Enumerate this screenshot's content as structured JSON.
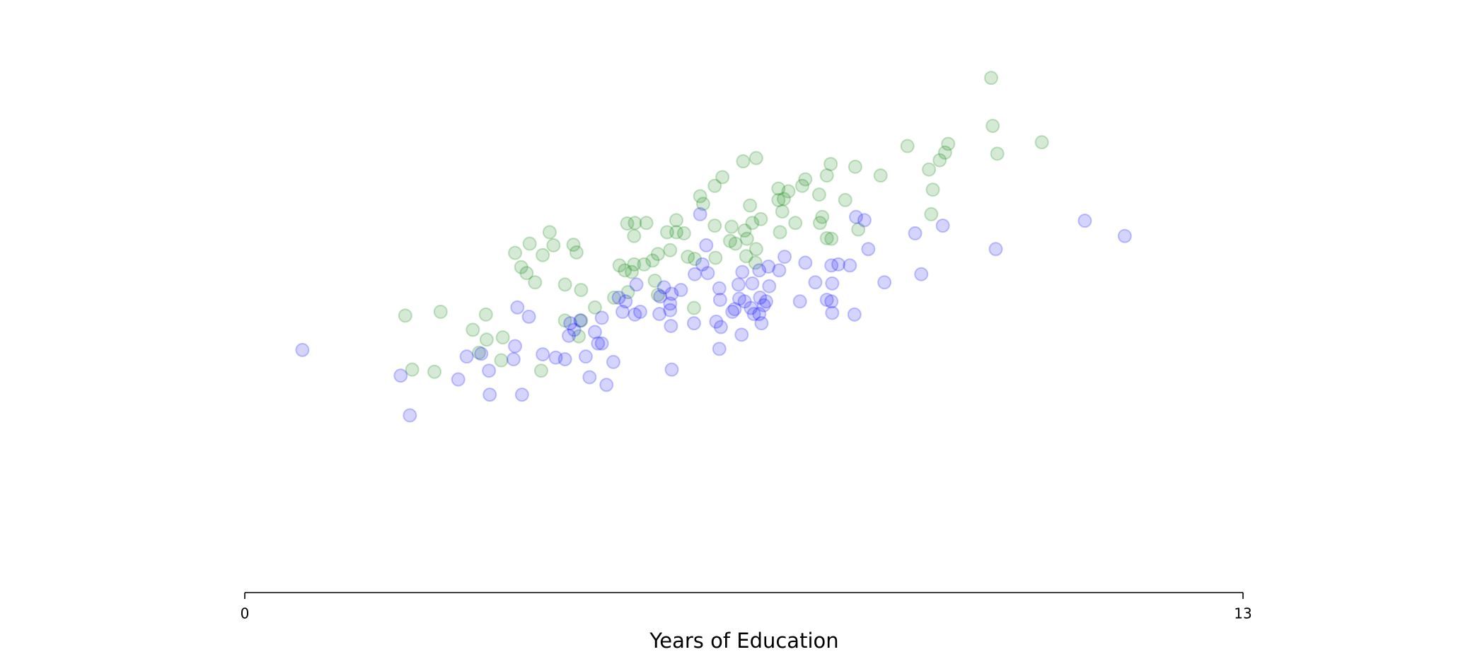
{
  "chart_data": {
    "type": "scatter",
    "x_label": "Years of Education",
    "xlim": [
      0,
      13
    ],
    "xticks": [
      0,
      13
    ],
    "ylim": [
      0,
      10
    ],
    "alpha": 0.17,
    "series": [
      {
        "color": "#008000",
        "x": [
          9.72,
          9.74,
          9.8,
          10.38,
          9.16,
          9.12,
          9.05,
          8.91,
          8.96,
          8.94,
          8.63,
          8.28,
          7.95,
          7.63,
          7.58,
          7.82,
          7.48,
          7.3,
          7.26,
          7.08,
          6.95,
          7.02,
          6.95,
          7.0,
          7.17,
          7.52,
          7.49,
          7.99,
          7.64,
          7.58,
          6.97,
          6.66,
          6.49,
          6.22,
          6.12,
          5.93,
          5.97,
          6.58,
          6.72,
          6.61,
          6.51,
          6.34,
          6.12,
          6.54,
          6.39,
          6.32,
          6.66,
          6.53,
          6.65,
          6.13,
          5.86,
          5.77,
          5.62,
          5.5,
          5.62,
          5.72,
          5.54,
          5.38,
          5.31,
          5.23,
          5.08,
          4.98,
          5.07,
          5.07,
          4.88,
          4.95,
          5.04,
          5.2,
          5.34,
          4.99,
          4.81,
          4.56,
          4.38,
          4.17,
          3.97,
          4.02,
          3.71,
          3.88,
          3.52,
          4.28,
          4.32,
          3.6,
          3.67,
          3.78,
          2.09,
          2.55,
          3.14,
          2.97,
          3.15,
          3.36,
          3.05,
          3.34,
          2.18,
          2.47,
          3.86,
          4.17,
          4.38,
          4.35,
          5.38,
          5.85
        ],
        "y": [
          9.44,
          8.56,
          8.05,
          8.26,
          8.23,
          8.07,
          7.93,
          7.76,
          7.39,
          6.94,
          8.19,
          7.65,
          7.81,
          7.86,
          7.65,
          7.2,
          7.3,
          7.58,
          7.46,
          7.36,
          7.41,
          7.22,
          7.2,
          6.99,
          6.78,
          6.89,
          6.78,
          6.66,
          6.49,
          6.5,
          6.61,
          7.97,
          7.91,
          7.62,
          7.46,
          7.27,
          7.13,
          7.1,
          6.85,
          6.78,
          6.64,
          6.71,
          6.73,
          6.49,
          6.4,
          6.45,
          6.3,
          6.17,
          6.05,
          6.14,
          6.12,
          6.16,
          6.83,
          6.61,
          6.61,
          6.59,
          6.28,
          6.21,
          6.09,
          6.78,
          6.78,
          6.77,
          6.54,
          6.02,
          6.0,
          5.91,
          5.88,
          6.02,
          5.72,
          5.51,
          5.41,
          5.23,
          5.55,
          5.65,
          6.61,
          6.37,
          6.4,
          6.19,
          6.23,
          6.38,
          6.24,
          5.97,
          5.86,
          5.69,
          5.08,
          5.15,
          5.1,
          4.82,
          4.64,
          4.68,
          4.4,
          4.26,
          4.09,
          4.05,
          4.07,
          4.99,
          4.99,
          4.7,
          5.46,
          5.22
        ]
      },
      {
        "color": "#0000ff",
        "x": [
          0.75,
          2.03,
          2.15,
          2.78,
          2.89,
          3.08,
          3.18,
          3.19,
          3.61,
          3.5,
          3.52,
          3.55,
          3.7,
          3.88,
          4.05,
          4.17,
          4.22,
          4.29,
          4.24,
          4.37,
          4.44,
          4.49,
          4.56,
          4.6,
          4.65,
          4.65,
          4.71,
          4.8,
          4.87,
          4.92,
          4.96,
          5.08,
          5.15,
          5.1,
          5.41,
          5.4,
          5.46,
          5.54,
          5.56,
          5.54,
          5.55,
          5.68,
          5.56,
          5.85,
          5.86,
          5.93,
          5.96,
          6.03,
          6.01,
          6.14,
          6.18,
          6.19,
          6.2,
          6.18,
          6.35,
          6.38,
          6.43,
          6.44,
          6.48,
          6.51,
          6.47,
          6.59,
          6.61,
          6.63,
          6.7,
          6.7,
          6.71,
          6.76,
          6.73,
          6.79,
          6.82,
          6.83,
          6.96,
          7.03,
          7.23,
          7.3,
          7.43,
          7.58,
          7.64,
          7.65,
          7.65,
          7.64,
          7.73,
          7.88,
          7.94,
          7.96,
          8.07,
          8.12,
          8.33,
          8.73,
          8.81,
          9.09,
          9.78,
          10.94,
          11.46
        ],
        "y": [
          4.45,
          3.98,
          3.25,
          3.91,
          4.33,
          4.38,
          4.07,
          3.63,
          3.63,
          4.28,
          4.52,
          5.23,
          5.06,
          4.37,
          4.31,
          4.28,
          4.71,
          4.82,
          4.94,
          4.99,
          4.33,
          3.95,
          4.78,
          4.57,
          4.57,
          5.04,
          3.81,
          4.23,
          5.41,
          5.15,
          5.34,
          5.1,
          5.15,
          5.65,
          5.43,
          5.11,
          5.6,
          5.3,
          5.48,
          5.18,
          4.89,
          5.55,
          4.09,
          4.94,
          5.84,
          6.94,
          6.02,
          5.86,
          6.37,
          4.97,
          5.58,
          5.37,
          4.87,
          4.47,
          5.15,
          5.2,
          5.65,
          5.39,
          5.88,
          5.34,
          4.73,
          5.22,
          5.67,
          5.11,
          5.11,
          5.91,
          5.41,
          5.27,
          4.94,
          5.34,
          5.98,
          5.62,
          5.91,
          6.16,
          5.34,
          6.05,
          5.69,
          5.37,
          5.34,
          5.13,
          5.67,
          6.0,
          6.02,
          6.0,
          5.1,
          6.89,
          6.83,
          6.3,
          5.69,
          6.59,
          5.84,
          6.73,
          6.3,
          6.82,
          6.54
        ]
      }
    ]
  }
}
